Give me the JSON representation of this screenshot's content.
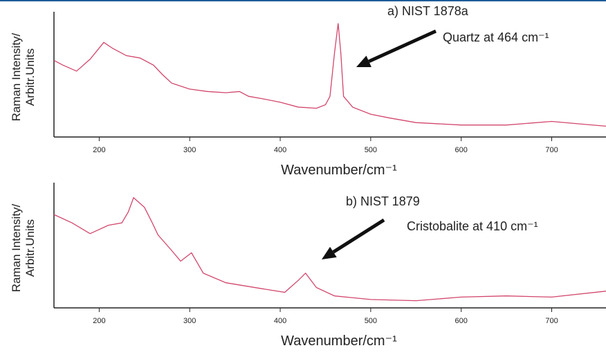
{
  "chart_data": [
    {
      "type": "line",
      "color": "#d2466c",
      "x_label": "Wavenumber/cm⁻¹",
      "y_label": [
        "Raman Intensity/",
        "Arbitr.Units"
      ],
      "annotations": [
        "a) NIST 1878a",
        "Quartz at 464 cm⁻¹"
      ],
      "x": [
        150,
        160,
        175,
        190,
        205,
        215,
        230,
        245,
        260,
        270,
        280,
        300,
        320,
        340,
        355,
        365,
        380,
        400,
        420,
        440,
        450,
        455,
        460,
        464,
        467,
        470,
        480,
        500,
        520,
        550,
        600,
        650,
        700,
        730,
        760
      ],
      "values": [
        64,
        60,
        55,
        65,
        79,
        74,
        68,
        66,
        60,
        52,
        45,
        40,
        38,
        37,
        38,
        34,
        32,
        29,
        25,
        24,
        27,
        34,
        70,
        95,
        70,
        34,
        25,
        19,
        16,
        12,
        10,
        10,
        13,
        11,
        9
      ],
      "xlim": [
        150,
        760
      ],
      "ylim": [
        0,
        100
      ],
      "xticks": [
        200,
        300,
        400,
        500,
        600,
        700
      ]
    },
    {
      "type": "line",
      "color": "#d2466c",
      "x_label": "Wavenumber/cm⁻¹",
      "y_label": [
        "Raman Intensity/",
        "Arbitr.Units"
      ],
      "annotations": [
        "b) NIST 1879",
        "Cristobalite at 410 cm⁻¹"
      ],
      "x": [
        150,
        170,
        190,
        210,
        225,
        232,
        238,
        250,
        258,
        265,
        280,
        290,
        302,
        315,
        340,
        380,
        405,
        420,
        428,
        440,
        460,
        500,
        550,
        600,
        650,
        700,
        760
      ],
      "values": [
        78,
        71,
        62,
        69,
        71,
        80,
        92,
        84,
        72,
        61,
        48,
        39,
        46,
        29,
        21,
        16,
        13,
        23,
        29,
        17,
        10,
        7,
        6,
        9,
        10,
        9,
        14
      ],
      "xlim": [
        150,
        760
      ],
      "ylim": [
        0,
        100
      ],
      "xticks": [
        200,
        300,
        400,
        500,
        600,
        700
      ]
    }
  ]
}
